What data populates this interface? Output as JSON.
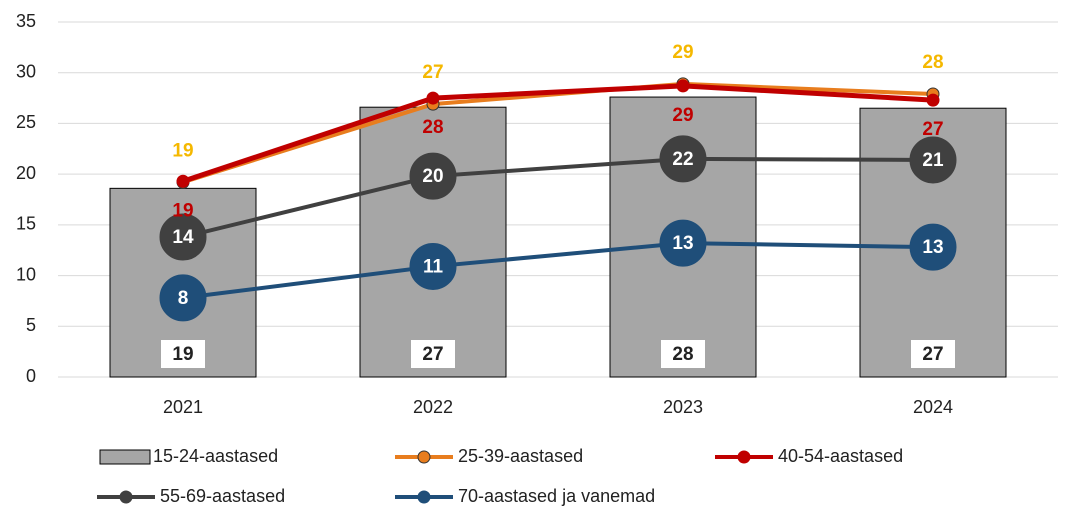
{
  "chart_data": {
    "type": "bar",
    "categories": [
      "2021",
      "2022",
      "2023",
      "2024"
    ],
    "ylim": [
      0,
      35
    ],
    "yticks": [
      0,
      5,
      10,
      15,
      20,
      25,
      30,
      35
    ],
    "grid": true,
    "series": [
      {
        "name": "15-24-aastased",
        "type": "bar",
        "color": "#a6a6a6",
        "values": [
          18.6,
          26.6,
          27.6,
          26.5
        ],
        "value_labels": [
          "19",
          "27",
          "28",
          "27"
        ]
      },
      {
        "name": "25-39-aastased",
        "type": "line",
        "color": "#e87d1e",
        "label_color": "#f5b800",
        "values": [
          19.2,
          26.9,
          28.9,
          27.9
        ],
        "value_labels": [
          "19",
          "27",
          "29",
          "28"
        ]
      },
      {
        "name": "40-54-aastased",
        "type": "line",
        "color": "#c00000",
        "label_color": "#c00000",
        "values": [
          19.3,
          27.5,
          28.7,
          27.3
        ],
        "value_labels": [
          "19",
          "28",
          "29",
          "27"
        ]
      },
      {
        "name": "55-69-aastased",
        "type": "line",
        "color": "#404040",
        "label_color": "#ffffff",
        "values": [
          13.8,
          19.8,
          21.5,
          21.4
        ],
        "value_labels": [
          "14",
          "20",
          "22",
          "21"
        ]
      },
      {
        "name": "70-aastased ja vanemad",
        "type": "line",
        "color": "#1f4e79",
        "label_color": "#ffffff",
        "values": [
          7.8,
          10.9,
          13.2,
          12.8
        ],
        "value_labels": [
          "8",
          "11",
          "13",
          "13"
        ]
      }
    ]
  }
}
